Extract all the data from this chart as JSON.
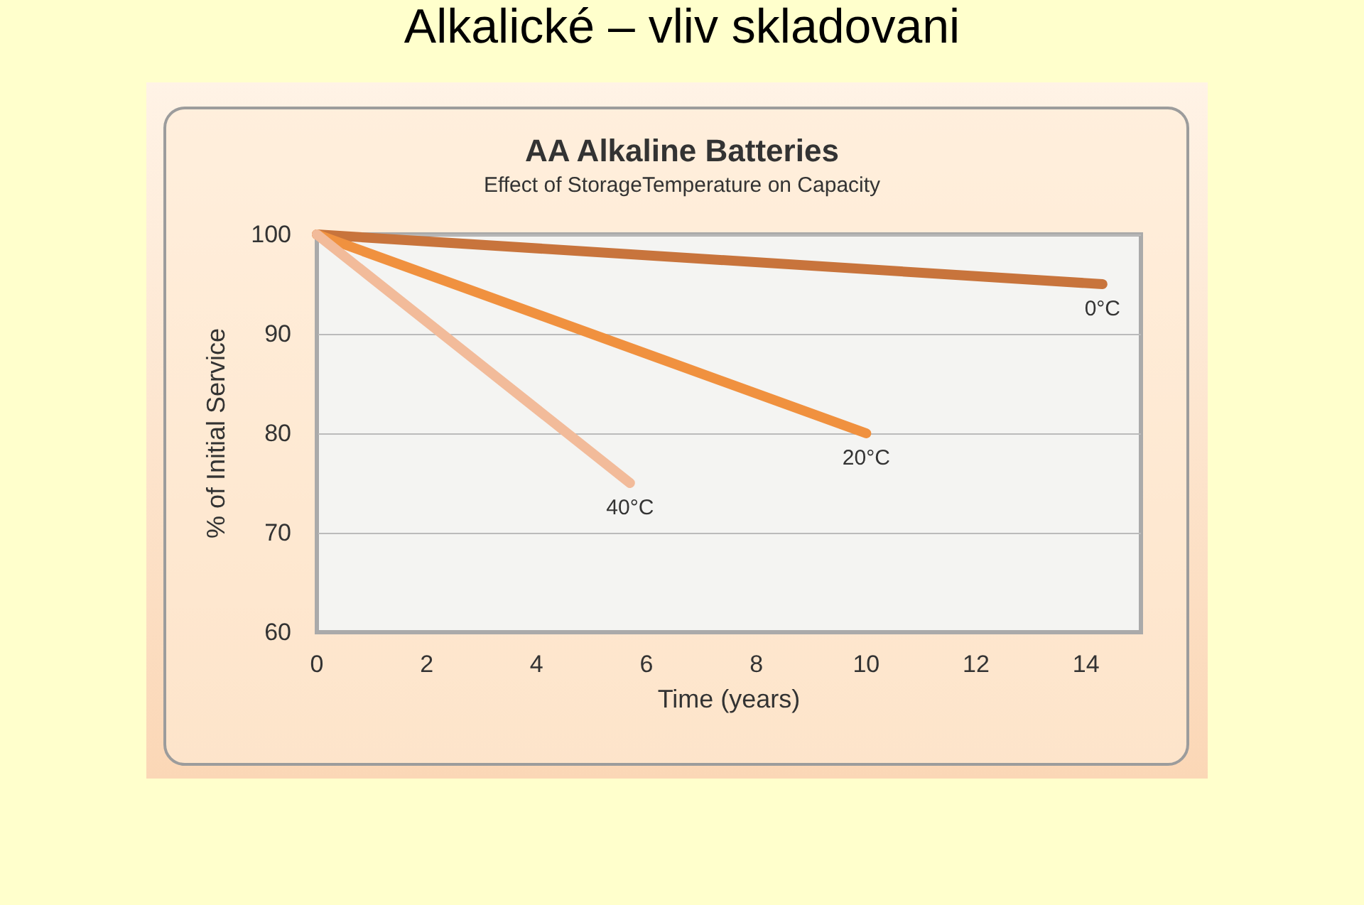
{
  "chart_data": {
    "type": "line",
    "title": "AA Alkaline Batteries",
    "subtitle": "Effect of StorageTemperature on Capacity",
    "annotations": [
      "Alkalické – vliv skladovani"
    ],
    "xlabel": "Time (years)",
    "ylabel": "% of Initial Service",
    "xlim": [
      0,
      15
    ],
    "xticks": [
      0,
      2,
      4,
      6,
      8,
      10,
      12,
      14
    ],
    "ylim": [
      60,
      100
    ],
    "yticks": [
      60,
      70,
      80,
      90,
      100
    ],
    "grid": "y",
    "legend": false,
    "marker": "none",
    "line_style": "solid",
    "series": [
      {
        "name": "0°C",
        "color": "#c8743c",
        "x": [
          0,
          14.3
        ],
        "values": [
          100,
          95
        ]
      },
      {
        "name": "20°C",
        "color": "#f0913f",
        "x": [
          0,
          10
        ],
        "values": [
          100,
          80
        ]
      },
      {
        "name": "40°C",
        "color": "#f2bb9a",
        "x": [
          0,
          5.7
        ],
        "values": [
          100,
          75
        ]
      }
    ]
  }
}
